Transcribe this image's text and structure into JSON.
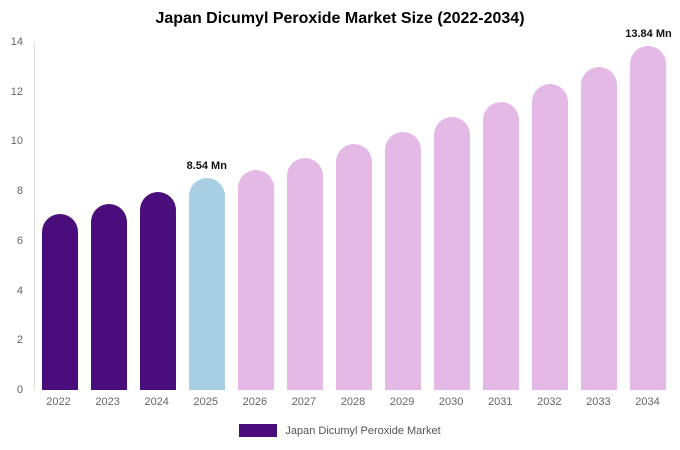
{
  "chart_data": {
    "type": "bar",
    "title": "Japan Dicumyl Peroxide Market Size (2022-2034)",
    "xlabel": "",
    "ylabel": "",
    "categories": [
      "2022",
      "2023",
      "2024",
      "2025",
      "2026",
      "2027",
      "2028",
      "2029",
      "2030",
      "2031",
      "2032",
      "2033",
      "2034"
    ],
    "values": [
      7.1,
      7.5,
      7.95,
      8.54,
      8.85,
      9.35,
      9.9,
      10.4,
      11.0,
      11.6,
      12.3,
      13.0,
      13.84
    ],
    "unit": "Mn",
    "bar_colors": [
      "#4a0d7c",
      "#4a0d7c",
      "#4a0d7c",
      "#a9cfe5",
      "#e5b9e6",
      "#e5b9e6",
      "#e5b9e6",
      "#e5b9e6",
      "#e5b9e6",
      "#e5b9e6",
      "#e5b9e6",
      "#e5b9e6",
      "#e5b9e6"
    ],
    "annotations": [
      {
        "index": 3,
        "text": "8.54 Mn"
      },
      {
        "index": 12,
        "text": "13.84 Mn"
      }
    ],
    "yticks": [
      0,
      2,
      4,
      6,
      8,
      10,
      12,
      14
    ],
    "ylim": [
      0,
      14
    ],
    "grid": false,
    "legend_position": "bottom",
    "legend": [
      {
        "label": "Japan Dicumyl Peroxide Market",
        "color": "#4a0d7c"
      }
    ]
  }
}
